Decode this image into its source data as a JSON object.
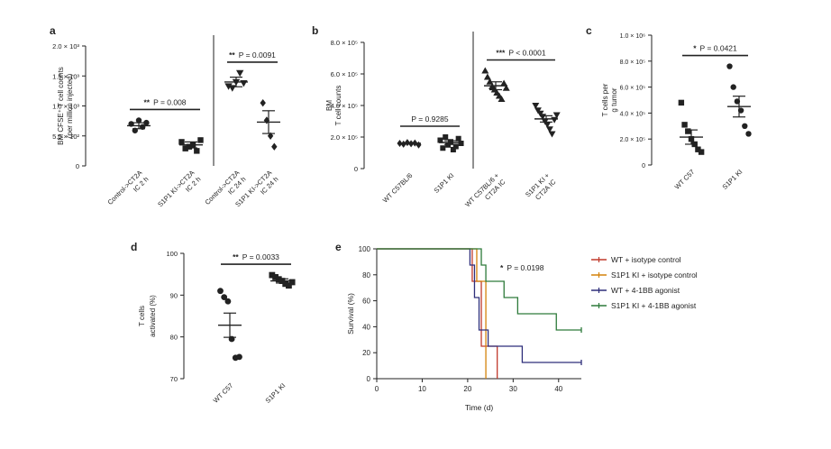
{
  "figure": {
    "background": "#ffffff",
    "ink": "#222222"
  },
  "chart_data": [
    {
      "panel": "a",
      "type": "scatter",
      "ylabel_lines": [
        "BM CFSE⁺ T cell counts",
        "(per million injected)"
      ],
      "ylim": [
        0,
        2000
      ],
      "yticks": [
        0,
        500,
        1000,
        1500,
        2000
      ],
      "ytick_labels": [
        "0",
        "5.0 × 10²",
        "1.0 × 10³",
        "1.5 × 10³",
        "2.0 × 10³"
      ],
      "groups": [
        {
          "label_lines": [
            "Control->CT2A",
            "IC 2 h"
          ],
          "marker": "circle",
          "values": [
            700,
            590,
            760,
            650,
            720
          ],
          "mean": 670,
          "sem": 50
        },
        {
          "label_lines": [
            "S1P1 KI->CT2A",
            "IC 2 h"
          ],
          "marker": "square",
          "values": [
            400,
            290,
            320,
            350,
            250,
            430
          ],
          "mean": 350,
          "sem": 50
        },
        {
          "label_lines": [
            "Control->CT2A",
            "IC 24 h"
          ],
          "marker": "triangle-down",
          "values": [
            1330,
            1300,
            1400,
            1550,
            1380
          ],
          "mean": 1400,
          "sem": 80
        },
        {
          "label_lines": [
            "S1P1 KI->CT2A",
            "IC 24 h"
          ],
          "marker": "diamond",
          "values": [
            1050,
            760,
            500,
            320
          ],
          "mean": 730,
          "sem": 190
        }
      ],
      "divider_after_group": 2,
      "comparisons": [
        {
          "from": 0,
          "to": 1,
          "stars": "**",
          "p_text": "P = 0.008"
        },
        {
          "from": 2,
          "to": 3,
          "stars": "**",
          "p_text": "P = 0.0091"
        }
      ]
    },
    {
      "panel": "b",
      "type": "scatter",
      "ylabel_lines": [
        "BM",
        "T cell counts"
      ],
      "ylim": [
        0,
        800000
      ],
      "yticks": [
        0,
        200000,
        400000,
        600000,
        800000
      ],
      "ytick_labels": [
        "0",
        "2.0 × 10⁵",
        "4.0 × 10⁵",
        "6.0 × 10⁵",
        "8.0 × 10⁵"
      ],
      "groups": [
        {
          "label_lines": [
            "WT C57BL/6"
          ],
          "marker": "diamond",
          "values": [
            160000,
            155000,
            165000,
            158000,
            162000,
            150000
          ],
          "mean": 160000,
          "sem": 5000
        },
        {
          "label_lines": [
            "S1P1 KI"
          ],
          "marker": "square",
          "values": [
            180000,
            130000,
            200000,
            150000,
            170000,
            120000,
            140000,
            190000,
            160000
          ],
          "mean": 165000,
          "sem": 12000
        },
        {
          "label_lines": [
            "WT C57BL/6 +",
            "CT2A IC"
          ],
          "marker": "triangle-up",
          "values": [
            620000,
            580000,
            550000,
            520000,
            500000,
            480000,
            460000,
            440000,
            540000,
            510000
          ],
          "mean": 525000,
          "sem": 25000
        },
        {
          "label_lines": [
            "S1P1 KI +",
            "CT2A IC"
          ],
          "marker": "triangle-down",
          "values": [
            400000,
            370000,
            350000,
            330000,
            300000,
            280000,
            250000,
            220000,
            310000,
            340000
          ],
          "mean": 315000,
          "sem": 20000
        }
      ],
      "divider_after_group": 2,
      "comparisons": [
        {
          "from": 0,
          "to": 1,
          "stars": "",
          "p_text": "P = 0.9285"
        },
        {
          "from": 2,
          "to": 3,
          "stars": "***",
          "p_text": "P < 0.0001"
        }
      ]
    },
    {
      "panel": "c",
      "type": "scatter",
      "ylabel_lines": [
        "T cells per",
        "g tumor"
      ],
      "ylim": [
        0,
        1000000
      ],
      "yticks": [
        0,
        200000,
        400000,
        600000,
        800000,
        1000000
      ],
      "ytick_labels": [
        "0",
        "2.0 × 10⁵",
        "4.0 × 10⁵",
        "6.0 × 10⁵",
        "8.0 × 10⁵",
        "1.0 × 10⁶"
      ],
      "groups": [
        {
          "label_lines": [
            "WT C57"
          ],
          "marker": "square",
          "values": [
            480000,
            310000,
            260000,
            200000,
            160000,
            120000,
            100000
          ],
          "mean": 215000,
          "sem": 55000
        },
        {
          "label_lines": [
            "S1P1 KI"
          ],
          "marker": "circle",
          "values": [
            760000,
            600000,
            490000,
            420000,
            300000,
            240000
          ],
          "mean": 450000,
          "sem": 80000
        }
      ],
      "comparisons": [
        {
          "from": 0,
          "to": 1,
          "stars": "*",
          "p_text": "P = 0.0421"
        }
      ]
    },
    {
      "panel": "d",
      "type": "scatter",
      "ylabel_lines": [
        "T cells",
        "activated (%)"
      ],
      "ylim": [
        70,
        100
      ],
      "yticks": [
        70,
        80,
        90,
        100
      ],
      "ytick_labels": [
        "70",
        "80",
        "90",
        "100"
      ],
      "groups": [
        {
          "label_lines": [
            "WT C57"
          ],
          "marker": "circle",
          "values": [
            91,
            89.5,
            88.5,
            79.5,
            75,
            75.2
          ],
          "mean": 82.8,
          "sem": 2.9
        },
        {
          "label_lines": [
            "S1P1 KI"
          ],
          "marker": "square",
          "values": [
            94.8,
            94.3,
            93.8,
            93.4,
            92.7,
            92.3,
            93.1
          ],
          "mean": 93.4,
          "sem": 0.5
        }
      ],
      "comparisons": [
        {
          "from": 0,
          "to": 1,
          "stars": "**",
          "p_text": "P = 0.0033"
        }
      ]
    },
    {
      "panel": "e",
      "type": "line",
      "subtype": "survival-step",
      "xlabel": "Time (d)",
      "ylabel": "Survival (%)",
      "xlim": [
        0,
        45
      ],
      "xticks": [
        0,
        10,
        20,
        30,
        40
      ],
      "ylim": [
        0,
        100
      ],
      "yticks": [
        0,
        20,
        40,
        60,
        80,
        100
      ],
      "annotation": {
        "stars": "*",
        "p_text": "P = 0.0198"
      },
      "series": [
        {
          "name": "WT + isotype control",
          "color": "#c0392b",
          "steps": [
            [
              0,
              100
            ],
            [
              21,
              100
            ],
            [
              21,
              75
            ],
            [
              23,
              75
            ],
            [
              23,
              25
            ],
            [
              26.5,
              25
            ],
            [
              26.5,
              0
            ]
          ]
        },
        {
          "name": "S1P1 KI + isotype control",
          "color": "#d4820a",
          "steps": [
            [
              0,
              100
            ],
            [
              22,
              100
            ],
            [
              22,
              75
            ],
            [
              24,
              75
            ],
            [
              24,
              0
            ]
          ]
        },
        {
          "name": "WT + 4-1BB agonist",
          "color": "#2e2e7a",
          "steps": [
            [
              0,
              100
            ],
            [
              20.5,
              100
            ],
            [
              20.5,
              87.5
            ],
            [
              21.5,
              87.5
            ],
            [
              21.5,
              62.5
            ],
            [
              22.5,
              62.5
            ],
            [
              22.5,
              37.5
            ],
            [
              24.5,
              37.5
            ],
            [
              24.5,
              25
            ],
            [
              32,
              25
            ],
            [
              32,
              12.5
            ],
            [
              45,
              12.5
            ]
          ]
        },
        {
          "name": "S1P1 KI + 4-1BB agonist",
          "color": "#2d7a3a",
          "steps": [
            [
              0,
              100
            ],
            [
              23,
              100
            ],
            [
              23,
              87.5
            ],
            [
              24,
              87.5
            ],
            [
              24,
              75
            ],
            [
              28,
              75
            ],
            [
              28,
              62.5
            ],
            [
              31,
              62.5
            ],
            [
              31,
              50
            ],
            [
              39.5,
              50
            ],
            [
              39.5,
              37.5
            ],
            [
              45,
              37.5
            ]
          ]
        }
      ]
    }
  ]
}
